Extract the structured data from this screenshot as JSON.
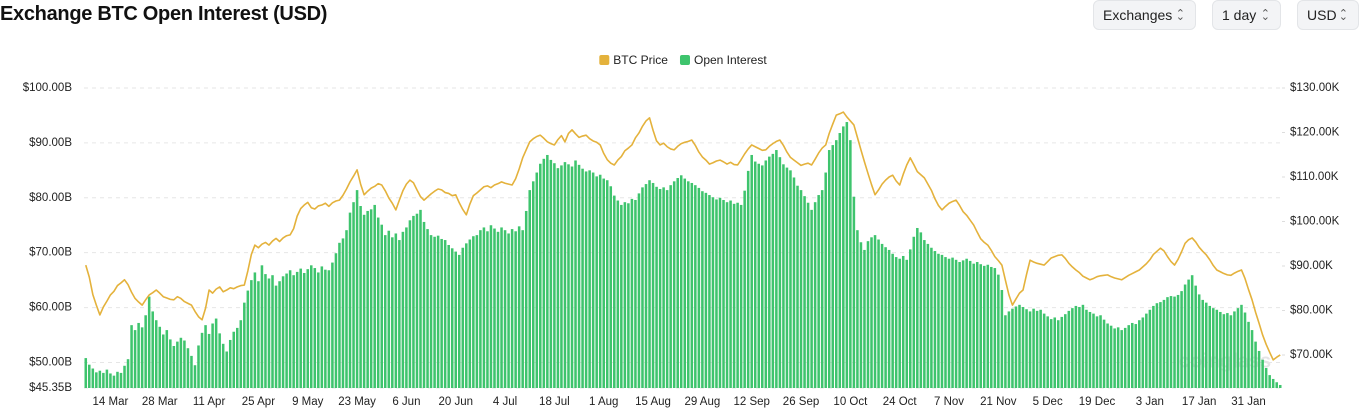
{
  "controls": [
    "Exchanges",
    "1 day",
    "USD"
  ],
  "chart_data": {
    "type": "bar",
    "title": "Exchange BTC Open Interest (USD)",
    "watermark": "coinglass",
    "categories": [
      null,
      null,
      null,
      null,
      null,
      null,
      null,
      "14 Mar",
      null,
      null,
      null,
      null,
      null,
      null,
      null,
      null,
      null,
      null,
      null,
      null,
      null,
      "28 Mar",
      null,
      null,
      null,
      null,
      null,
      null,
      null,
      null,
      null,
      null,
      null,
      null,
      null,
      "11 Apr",
      null,
      null,
      null,
      null,
      null,
      null,
      null,
      null,
      null,
      null,
      null,
      null,
      null,
      "25 Apr",
      null,
      null,
      null,
      null,
      null,
      null,
      null,
      null,
      null,
      null,
      null,
      null,
      null,
      "9 May",
      null,
      null,
      null,
      null,
      null,
      null,
      null,
      null,
      null,
      null,
      null,
      null,
      null,
      "23 May",
      null,
      null,
      null,
      null,
      null,
      null,
      null,
      null,
      null,
      null,
      null,
      null,
      null,
      "6 Jun",
      null,
      null,
      null,
      null,
      null,
      null,
      null,
      null,
      null,
      null,
      null,
      null,
      null,
      "20 Jun",
      null,
      null,
      null,
      null,
      null,
      null,
      null,
      null,
      null,
      null,
      null,
      null,
      null,
      "4 Jul",
      null,
      null,
      null,
      null,
      null,
      null,
      null,
      null,
      null,
      null,
      null,
      null,
      null,
      "18 Jul",
      null,
      null,
      null,
      null,
      null,
      null,
      null,
      null,
      null,
      null,
      null,
      null,
      null,
      "1 Aug",
      null,
      null,
      null,
      null,
      null,
      null,
      null,
      null,
      null,
      null,
      null,
      null,
      null,
      "15 Aug",
      null,
      null,
      null,
      null,
      null,
      null,
      null,
      null,
      null,
      null,
      null,
      null,
      null,
      "29 Aug",
      null,
      null,
      null,
      null,
      null,
      null,
      null,
      null,
      null,
      null,
      null,
      null,
      null,
      "12 Sep",
      null,
      null,
      null,
      null,
      null,
      null,
      null,
      null,
      null,
      null,
      null,
      null,
      null,
      "26 Sep",
      null,
      null,
      null,
      null,
      null,
      null,
      null,
      null,
      null,
      null,
      null,
      null,
      null,
      "10 Oct",
      null,
      null,
      null,
      null,
      null,
      null,
      null,
      null,
      null,
      null,
      null,
      null,
      null,
      "24 Oct",
      null,
      null,
      null,
      null,
      null,
      null,
      null,
      null,
      null,
      null,
      null,
      null,
      null,
      "7 Nov",
      null,
      null,
      null,
      null,
      null,
      null,
      null,
      null,
      null,
      null,
      null,
      null,
      null,
      "21 Nov",
      null,
      null,
      null,
      null,
      null,
      null,
      null,
      null,
      null,
      null,
      null,
      null,
      null,
      "5 Dec",
      null,
      null,
      null,
      null,
      null,
      null,
      null,
      null,
      null,
      null,
      null,
      null,
      null,
      "19 Dec",
      null,
      null,
      null,
      null,
      null,
      null,
      null,
      null,
      null,
      null,
      null,
      null,
      null,
      null,
      "3 Jan",
      null,
      null,
      null,
      null,
      null,
      null,
      null,
      null,
      null,
      null,
      null,
      null,
      null,
      "17 Jan",
      null,
      null,
      null,
      null,
      null,
      null,
      null,
      null,
      null,
      null,
      null,
      null,
      null,
      "31 Jan",
      null,
      null,
      null,
      null,
      null,
      null,
      null,
      null,
      null
    ],
    "series": [
      {
        "name": "BTC Price",
        "type": "line",
        "axis": "y2",
        "color": "#e4b23c",
        "values": [
          90.2,
          87.5,
          83.6,
          81.2,
          79.0,
          80.8,
          82.1,
          83.5,
          84.3,
          85.6,
          86.2,
          86.9,
          85.8,
          84.1,
          82.7,
          81.9,
          81.2,
          82.4,
          83.5,
          84.0,
          84.6,
          83.9,
          83.1,
          82.8,
          82.5,
          82.4,
          83.1,
          82.7,
          82.0,
          81.6,
          81.2,
          79.8,
          78.6,
          77.9,
          80.5,
          84.6,
          83.9,
          84.8,
          85.3,
          84.2,
          84.6,
          85.1,
          84.9,
          85.3,
          85.6,
          85.7,
          88.9,
          92.6,
          94.7,
          94.1,
          94.9,
          95.3,
          94.7,
          95.6,
          96.2,
          95.5,
          96.3,
          96.8,
          97.0,
          98.4,
          101.2,
          102.9,
          103.7,
          104.3,
          103.1,
          102.8,
          103.5,
          103.7,
          104.1,
          103.4,
          104.2,
          104.6,
          104.8,
          105.9,
          107.3,
          108.9,
          110.2,
          111.6,
          108.4,
          106.0,
          106.8,
          107.5,
          107.9,
          108.5,
          108.2,
          106.9,
          105.3,
          104.1,
          102.6,
          104.8,
          106.9,
          108.4,
          109.3,
          108.7,
          107.1,
          105.6,
          104.8,
          105.5,
          106.2,
          106.8,
          107.3,
          107.1,
          106.5,
          106.3,
          105.8,
          106.0,
          104.2,
          102.7,
          101.5,
          103.9,
          105.8,
          106.4,
          107.1,
          107.8,
          108.0,
          107.6,
          108.2,
          108.5,
          108.9,
          108.6,
          108.4,
          108.2,
          109.6,
          111.8,
          114.3,
          116.1,
          117.9,
          118.6,
          119.1,
          119.4,
          118.7,
          117.9,
          117.5,
          117.2,
          118.4,
          119.3,
          117.9,
          119.8,
          120.6,
          119.7,
          118.9,
          119.2,
          119.4,
          118.6,
          118.1,
          117.8,
          117.2,
          115.3,
          113.9,
          113.1,
          112.7,
          113.8,
          114.6,
          115.9,
          116.5,
          117.2,
          118.8,
          119.9,
          121.4,
          122.6,
          123.3,
          120.5,
          118.1,
          117.2,
          117.6,
          116.8,
          116.3,
          116.1,
          116.9,
          117.5,
          117.8,
          118.0,
          118.3,
          117.1,
          115.6,
          114.5,
          113.8,
          112.9,
          113.2,
          113.6,
          113.8,
          113.4,
          112.9,
          113.3,
          112.8,
          112.7,
          113.9,
          115.2,
          116.3,
          117.2,
          116.8,
          116.4,
          116.0,
          116.1,
          116.9,
          117.5,
          118.0,
          118.3,
          117.1,
          115.6,
          114.4,
          113.8,
          113.2,
          112.6,
          112.9,
          113.1,
          112.7,
          114.0,
          115.4,
          116.5,
          117.2,
          119.8,
          121.9,
          123.9,
          124.2,
          124.6,
          123.5,
          122.6,
          121.7,
          118.9,
          116.1,
          113.4,
          110.8,
          108.3,
          106.0,
          107.1,
          108.4,
          109.3,
          110.0,
          110.4,
          109.1,
          108.2,
          110.6,
          112.7,
          114.3,
          112.8,
          111.2,
          110.5,
          109.8,
          108.4,
          107.0,
          105.1,
          103.6,
          102.6,
          103.4,
          104.1,
          104.5,
          104.8,
          103.6,
          102.2,
          101.4,
          100.3,
          99.2,
          97.6,
          96.1,
          95.3,
          94.7,
          93.5,
          92.1,
          91.2,
          90.2,
          86.8,
          83.5,
          81.2,
          82.6,
          83.9,
          84.6,
          88.1,
          91.3,
          90.9,
          90.6,
          90.4,
          90.2,
          91.0,
          91.8,
          92.1,
          92.4,
          92.5,
          91.7,
          90.6,
          89.8,
          89.1,
          88.5,
          87.7,
          87.3,
          86.9,
          87.2,
          87.6,
          87.8,
          87.9,
          88.0,
          87.6,
          87.3,
          87.1,
          86.9,
          87.4,
          87.9,
          88.3,
          88.7,
          89.1,
          89.8,
          90.5,
          91.4,
          92.6,
          93.3,
          94.0,
          93.4,
          92.1,
          91.0,
          90.2,
          91.5,
          93.2,
          95.1,
          95.9,
          96.3,
          95.4,
          94.2,
          93.3,
          92.5,
          91.4,
          90.1,
          89.1,
          88.7,
          88.3,
          88.0,
          87.9,
          88.4,
          88.8,
          89.1,
          87.2,
          84.7,
          82.4,
          79.6,
          77.1,
          74.5,
          72.4,
          70.6,
          68.9,
          69.5,
          70.0
        ]
      },
      {
        "name": "Open Interest",
        "type": "bar",
        "axis": "y",
        "color": "#3ec46d",
        "values": [
          50.8,
          49.6,
          48.9,
          48.2,
          48.5,
          48.1,
          48.7,
          48.0,
          47.6,
          48.3,
          48.1,
          49.4,
          50.6,
          56.8,
          55.9,
          57.2,
          56.4,
          58.6,
          62.0,
          59.3,
          57.7,
          56.5,
          55.1,
          55.9,
          54.2,
          53.0,
          53.8,
          54.5,
          54.0,
          52.6,
          51.2,
          49.5,
          53.1,
          55.4,
          56.8,
          55.2,
          57.1,
          58.0,
          55.3,
          53.4,
          52.0,
          54.1,
          55.6,
          56.3,
          57.7,
          60.9,
          63.1,
          65.0,
          66.4,
          64.8,
          67.7,
          66.1,
          65.3,
          65.9,
          64.0,
          64.8,
          65.7,
          66.2,
          66.8,
          65.9,
          66.5,
          67.1,
          66.3,
          67.0,
          67.7,
          67.2,
          66.4,
          67.5,
          66.9,
          66.8,
          68.2,
          69.9,
          71.8,
          72.6,
          74.1,
          77.3,
          79.2,
          81.4,
          78.5,
          76.9,
          77.6,
          77.9,
          78.7,
          76.4,
          75.1,
          73.2,
          74.0,
          72.8,
          73.5,
          72.3,
          73.8,
          74.6,
          75.9,
          76.7,
          77.1,
          77.8,
          75.6,
          74.3,
          73.2,
          72.9,
          73.1,
          72.5,
          72.3,
          71.4,
          70.8,
          70.2,
          69.6,
          70.9,
          71.7,
          72.4,
          73.0,
          73.2,
          74.1,
          74.6,
          73.9,
          75.0,
          74.4,
          73.8,
          74.6,
          74.1,
          73.5,
          74.3,
          73.9,
          74.8,
          74.1,
          77.6,
          81.4,
          83.0,
          84.6,
          86.2,
          87.1,
          87.8,
          86.9,
          86.3,
          85.4,
          85.9,
          86.5,
          86.1,
          85.7,
          86.8,
          86.0,
          85.3,
          84.8,
          85.0,
          84.6,
          83.9,
          84.2,
          83.5,
          83.2,
          82.1,
          80.4,
          79.5,
          78.7,
          79.2,
          79.0,
          79.8,
          79.6,
          80.8,
          81.9,
          82.5,
          83.2,
          82.7,
          82.0,
          81.6,
          81.9,
          81.4,
          82.3,
          83.0,
          83.6,
          84.1,
          83.5,
          83.0,
          82.7,
          82.3,
          81.8,
          81.2,
          80.9,
          80.5,
          80.1,
          79.7,
          80.0,
          79.6,
          79.2,
          79.5,
          78.9,
          79.1,
          78.7,
          81.3,
          84.9,
          87.8,
          86.6,
          86.2,
          85.9,
          86.8,
          87.5,
          88.0,
          88.7,
          87.4,
          86.1,
          85.5,
          85.0,
          83.7,
          82.2,
          81.4,
          80.3,
          79.1,
          77.8,
          79.2,
          80.5,
          81.4,
          84.6,
          88.7,
          89.6,
          90.5,
          91.8,
          93.0,
          93.8,
          90.5,
          80.2,
          74.1,
          71.9,
          70.5,
          72.1,
          72.8,
          73.2,
          72.4,
          71.6,
          71.0,
          70.5,
          69.8,
          69.2,
          68.9,
          69.4,
          68.7,
          70.6,
          72.9,
          74.5,
          73.7,
          72.3,
          71.6,
          70.9,
          70.3,
          69.8,
          69.6,
          69.2,
          68.9,
          69.1,
          68.7,
          68.3,
          68.6,
          68.9,
          68.5,
          68.0,
          68.3,
          67.9,
          67.6,
          67.8,
          67.4,
          67.2,
          66.0,
          63.2,
          58.6,
          59.3,
          59.8,
          60.2,
          60.5,
          60.1,
          59.7,
          59.3,
          59.8,
          59.4,
          59.6,
          58.9,
          58.4,
          57.9,
          58.2,
          57.7,
          58.3,
          58.8,
          59.4,
          59.9,
          60.3,
          60.1,
          60.5,
          59.6,
          59.2,
          58.9,
          58.4,
          58.6,
          57.8,
          57.1,
          56.7,
          56.2,
          56.4,
          55.9,
          56.3,
          56.8,
          57.2,
          57.0,
          57.7,
          58.2,
          58.9,
          59.6,
          60.3,
          60.8,
          61.0,
          61.4,
          61.9,
          62.1,
          62.0,
          62.3,
          63.0,
          64.2,
          65.1,
          65.9,
          64.0,
          62.4,
          61.4,
          60.9,
          60.3,
          59.9,
          59.6,
          59.2,
          58.8,
          59.0,
          58.6,
          59.3,
          59.9,
          60.5,
          59.1,
          57.4,
          55.9,
          53.8,
          52.1,
          50.5,
          49.0,
          47.7,
          47.0,
          46.4,
          45.9
        ]
      }
    ],
    "ylim": [
      45.35,
      100
    ],
    "yticks": [
      {
        "value": 45.35,
        "label": "$45.35B"
      },
      {
        "value": 50,
        "label": "$50.00B"
      },
      {
        "value": 60,
        "label": "$60.00B"
      },
      {
        "value": 70,
        "label": "$70.00B"
      },
      {
        "value": 80,
        "label": "$80.00B"
      },
      {
        "value": 90,
        "label": "$90.00B"
      },
      {
        "value": 100,
        "label": "$100.00B"
      }
    ],
    "y2lim": [
      62.58,
      130
    ],
    "y2ticks": [
      {
        "value": 70,
        "label": "$70.00K"
      },
      {
        "value": 80,
        "label": "$80.00K"
      },
      {
        "value": 90,
        "label": "$90.00K"
      },
      {
        "value": 100,
        "label": "$100.00K"
      },
      {
        "value": 110,
        "label": "$110.00K"
      },
      {
        "value": 120,
        "label": "$120.00K"
      },
      {
        "value": 130,
        "label": "$130.00K"
      }
    ],
    "grid": true,
    "legend": "top"
  }
}
